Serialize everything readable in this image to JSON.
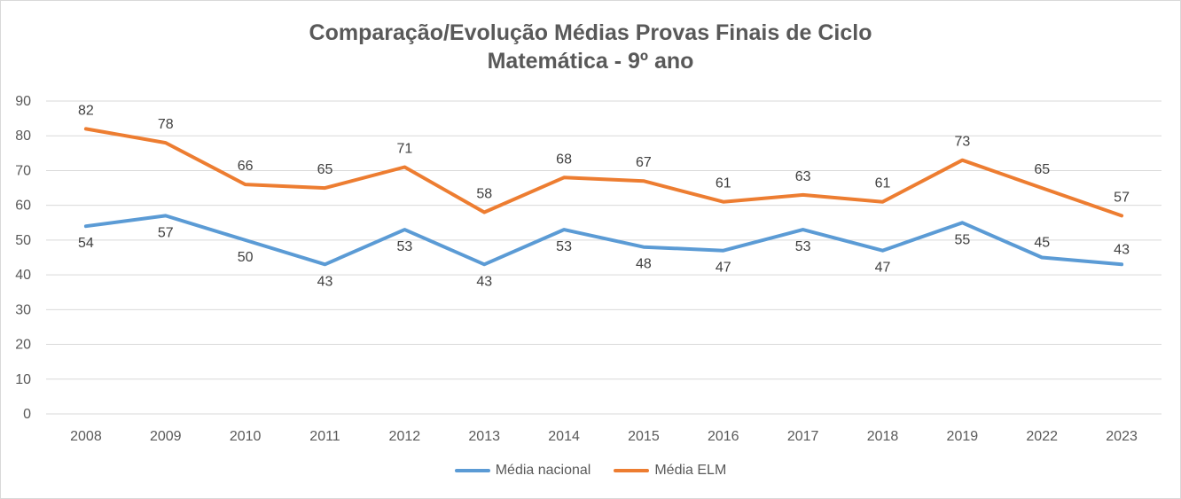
{
  "chart_data": {
    "type": "line",
    "title": "Comparação/Evolução Médias Provas Finais de Ciclo",
    "subtitle": "Matemática - 9º ano",
    "xlabel": "",
    "ylabel": "",
    "ylim": [
      0,
      90
    ],
    "yticks": [
      0,
      10,
      20,
      30,
      40,
      50,
      60,
      70,
      80,
      90
    ],
    "grid": true,
    "legend_position": "bottom",
    "categories": [
      "2008",
      "2009",
      "2010",
      "2011",
      "2012",
      "2013",
      "2014",
      "2015",
      "2016",
      "2017",
      "2018",
      "2019",
      "2022",
      "2023"
    ],
    "series": [
      {
        "name": "Média nacional",
        "color": "#5b9bd5",
        "values": [
          54,
          57,
          50,
          43,
          53,
          43,
          53,
          48,
          47,
          53,
          47,
          55,
          45,
          43
        ]
      },
      {
        "name": "Média ELM",
        "color": "#ed7d31",
        "values": [
          82,
          78,
          66,
          65,
          71,
          58,
          68,
          67,
          61,
          63,
          61,
          73,
          65,
          57
        ]
      }
    ]
  }
}
